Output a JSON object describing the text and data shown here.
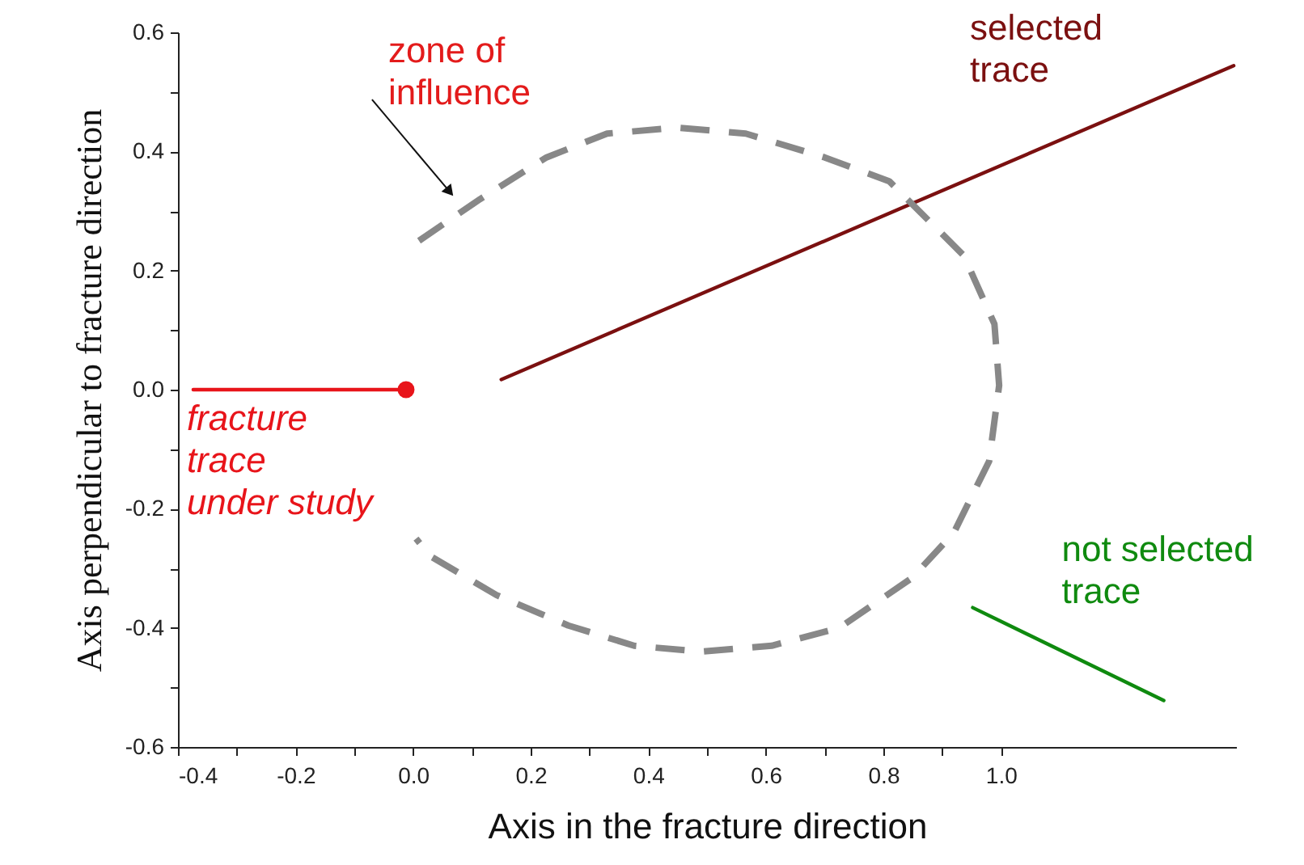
{
  "chart_data": {
    "type": "line",
    "xlabel": "Axis in the fracture direction",
    "ylabel": "Axis perpendicular to fracture direction",
    "xlim": [
      -0.4,
      1.4
    ],
    "ylim": [
      -0.6,
      0.6
    ],
    "xticks": [
      -0.4,
      {
        "value": -0.3,
        "label": null
      },
      -0.2,
      {
        "value": -0.1,
        "label": null
      },
      {
        "value": 0,
        "label": "0.0"
      },
      {
        "value": 0.1,
        "label": null
      },
      0.2,
      {
        "value": 0.3,
        "label": null
      },
      0.4,
      {
        "value": 0.5,
        "label": null
      },
      0.6,
      {
        "value": 0.7,
        "label": null
      },
      0.8,
      {
        "value": 0.9,
        "label": null
      },
      {
        "value": 1,
        "label": "1.0"
      }
    ],
    "yticks": [
      -0.6,
      {
        "value": -0.5,
        "label": null
      },
      -0.4,
      {
        "value": -0.3,
        "label": null
      },
      -0.2,
      {
        "value": -0.1,
        "label": null
      },
      {
        "value": 0,
        "label": "0.0"
      },
      {
        "value": 0.1,
        "label": null
      },
      0.2,
      {
        "value": 0.3,
        "label": null
      },
      0.4,
      {
        "value": 0.5,
        "label": null
      },
      0.6
    ],
    "grid": false,
    "series": [
      {
        "name": "fracture\ntrace\nunder study",
        "color": "#e8141a",
        "x": [
          -0.374,
          -0.012
        ],
        "values": [
          0.0,
          0.0
        ]
      },
      {
        "type": "scatter",
        "color": "#e8141a",
        "marker": "circle",
        "x": [
          -0.012
        ],
        "values": [
          0.0
        ]
      },
      {
        "name": "selected\ntrace",
        "color": "#7b1010",
        "x": [
          0.15,
          1.396
        ],
        "values": [
          0.017,
          0.544
        ]
      },
      {
        "name": "not selected\ntrace",
        "color": "#0f8a0f",
        "x": [
          0.952,
          1.277
        ],
        "values": [
          -0.366,
          -0.522
        ]
      },
      {
        "color": "#888888",
        "line_style": "dashed",
        "x": [
          0.01,
          0.114,
          0.227,
          0.33,
          0.45,
          0.566,
          0.7,
          0.81,
          0.937,
          0.989,
          0.997,
          0.98,
          0.92,
          0.849,
          0.725,
          0.61,
          0.49,
          0.376,
          0.264,
          0.142,
          0.03,
          0.005
        ],
        "values": [
          0.25,
          0.32,
          0.39,
          0.43,
          0.44,
          0.43,
          0.39,
          0.35,
          0.225,
          0.11,
          0.007,
          -0.12,
          -0.24,
          -0.316,
          -0.4,
          -0.43,
          -0.44,
          -0.43,
          -0.396,
          -0.345,
          -0.28,
          -0.25
        ]
      }
    ],
    "annotations": [
      {
        "text": "zone of\ninfluence",
        "x": 0.076,
        "y": 0.316
      }
    ]
  }
}
